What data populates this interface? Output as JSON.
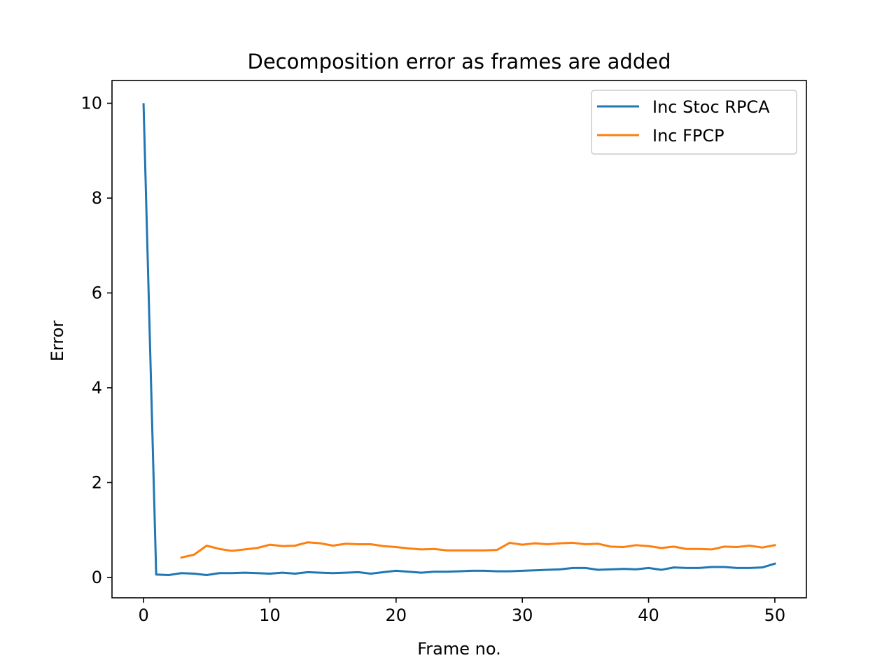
{
  "chart_data": {
    "type": "line",
    "title": "Decomposition error as frames are added",
    "xlabel": "Frame no.",
    "ylabel": "Error",
    "xlim": [
      -2.5,
      52.5
    ],
    "ylim": [
      -0.43,
      10.48
    ],
    "xticks": [
      0,
      10,
      20,
      30,
      40,
      50
    ],
    "yticks": [
      0,
      2,
      4,
      6,
      8,
      10
    ],
    "grid": false,
    "legend_position": "top-right",
    "series": [
      {
        "name": "Inc Stoc RPCA",
        "color": "#1f77b4",
        "x": [
          0,
          1,
          2,
          3,
          4,
          5,
          6,
          7,
          8,
          9,
          10,
          11,
          12,
          13,
          14,
          15,
          16,
          17,
          18,
          19,
          20,
          21,
          22,
          23,
          24,
          25,
          26,
          27,
          28,
          29,
          30,
          31,
          32,
          33,
          34,
          35,
          36,
          37,
          38,
          39,
          40,
          41,
          42,
          43,
          44,
          45,
          46,
          47,
          48,
          49,
          50
        ],
        "y": [
          9.98,
          0.06,
          0.05,
          0.09,
          0.08,
          0.05,
          0.09,
          0.09,
          0.1,
          0.09,
          0.08,
          0.1,
          0.08,
          0.11,
          0.1,
          0.09,
          0.1,
          0.11,
          0.08,
          0.11,
          0.14,
          0.12,
          0.1,
          0.12,
          0.12,
          0.13,
          0.14,
          0.14,
          0.13,
          0.13,
          0.14,
          0.15,
          0.16,
          0.17,
          0.2,
          0.2,
          0.16,
          0.17,
          0.18,
          0.17,
          0.2,
          0.16,
          0.21,
          0.2,
          0.2,
          0.22,
          0.22,
          0.2,
          0.2,
          0.21,
          0.29
        ]
      },
      {
        "name": "Inc FPCP",
        "color": "#ff7f0e",
        "x": [
          3,
          4,
          5,
          6,
          7,
          8,
          9,
          10,
          11,
          12,
          13,
          14,
          15,
          16,
          17,
          18,
          19,
          20,
          21,
          22,
          23,
          24,
          25,
          26,
          27,
          28,
          29,
          30,
          31,
          32,
          33,
          34,
          35,
          36,
          37,
          38,
          39,
          40,
          41,
          42,
          43,
          44,
          45,
          46,
          47,
          48,
          49,
          50
        ],
        "y": [
          0.42,
          0.48,
          0.67,
          0.6,
          0.56,
          0.59,
          0.62,
          0.69,
          0.66,
          0.67,
          0.74,
          0.72,
          0.67,
          0.71,
          0.7,
          0.7,
          0.66,
          0.64,
          0.61,
          0.59,
          0.6,
          0.57,
          0.57,
          0.57,
          0.57,
          0.58,
          0.73,
          0.69,
          0.72,
          0.7,
          0.72,
          0.73,
          0.7,
          0.71,
          0.65,
          0.64,
          0.68,
          0.66,
          0.62,
          0.65,
          0.6,
          0.6,
          0.59,
          0.65,
          0.64,
          0.67,
          0.63,
          0.68
        ]
      }
    ]
  }
}
